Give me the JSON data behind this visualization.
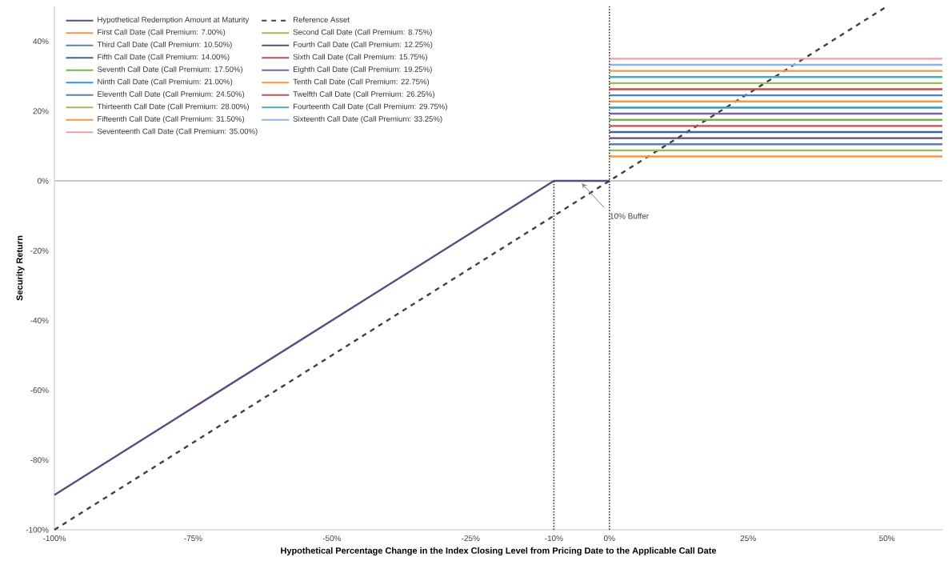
{
  "chart_data": {
    "type": "line",
    "xlabel": "Hypothetical Percentage Change in the Index Closing Level from Pricing Date to the Applicable Call Date",
    "ylabel": "Security Return",
    "xlim": [
      -100,
      60
    ],
    "ylim": [
      -100,
      50
    ],
    "xticks": [
      {
        "value": -100,
        "label": "-100%"
      },
      {
        "value": -75,
        "label": "-75%"
      },
      {
        "value": -50,
        "label": "-50%"
      },
      {
        "value": -25,
        "label": "-25%"
      },
      {
        "value": -10,
        "label": "-10%"
      },
      {
        "value": 0,
        "label": "0%"
      },
      {
        "value": 25,
        "label": "25%"
      },
      {
        "value": 50,
        "label": "50%"
      }
    ],
    "yticks": [
      {
        "value": -100,
        "label": "-100%"
      },
      {
        "value": -80,
        "label": "-80%"
      },
      {
        "value": -60,
        "label": "-60%"
      },
      {
        "value": -40,
        "label": "-40%"
      },
      {
        "value": -20,
        "label": "-20%"
      },
      {
        "value": 0,
        "label": "0%"
      },
      {
        "value": 20,
        "label": "20%"
      },
      {
        "value": 40,
        "label": "40%"
      }
    ],
    "legend": "top left",
    "marker": "none",
    "ref_lines": [
      {
        "axis": "y",
        "value": 0,
        "color": "#c8c8c8"
      }
    ],
    "annotations": [
      {
        "text": "10% Buffer",
        "x": -5,
        "y": 0
      }
    ],
    "series": [
      {
        "name": "Hypothetical Redemption Amount at Maturity",
        "color": "#604a7b",
        "x": [
          -100,
          -10,
          0
        ],
        "values": [
          -90,
          0,
          0
        ]
      },
      {
        "name": "Reference Asset",
        "color": "#404040",
        "line_style": "dashed",
        "x": [
          -100,
          50
        ],
        "values": [
          -100,
          50
        ]
      },
      {
        "name": "First Call Date (Call Premium: 7.00%)",
        "color": "#f79646",
        "x": [
          0,
          60
        ],
        "values": [
          7,
          7
        ]
      },
      {
        "name": "Second Call Date (Call Premium: 8.75%)",
        "color": "#9bbb59",
        "x": [
          0,
          60
        ],
        "values": [
          8.75,
          8.75
        ]
      },
      {
        "name": "Third Call Date (Call Premium: 10.50%)",
        "color": "#4f81bd",
        "x": [
          0,
          60
        ],
        "values": [
          10.5,
          10.5
        ]
      },
      {
        "name": "Fourth Call Date (Call Premium: 12.25%)",
        "color": "#604a7b",
        "x": [
          0,
          60
        ],
        "values": [
          12.25,
          12.25
        ]
      },
      {
        "name": "Fifth Call Date (Call Premium: 14.00%)",
        "color": "#3c64a0",
        "x": [
          0,
          60
        ],
        "values": [
          14,
          14
        ]
      },
      {
        "name": "Sixth Call Date (Call Premium: 15.75%)",
        "color": "#c0504d",
        "x": [
          0,
          60
        ],
        "values": [
          15.75,
          15.75
        ]
      },
      {
        "name": "Seventh Call Date (Call Premium: 17.50%)",
        "color": "#77b553",
        "x": [
          0,
          60
        ],
        "values": [
          17.5,
          17.5
        ]
      },
      {
        "name": "Eighth Call Date (Call Premium: 19.25%)",
        "color": "#8064a2",
        "x": [
          0,
          60
        ],
        "values": [
          19.25,
          19.25
        ]
      },
      {
        "name": "Ninth Call Date (Call Premium: 21.00%)",
        "color": "#2e9ad0",
        "x": [
          0,
          60
        ],
        "values": [
          21,
          21
        ]
      },
      {
        "name": "Tenth Call Date (Call Premium: 22.75%)",
        "color": "#f79646",
        "x": [
          0,
          60
        ],
        "values": [
          22.75,
          22.75
        ]
      },
      {
        "name": "Eleventh Call Date (Call Premium: 24.50%)",
        "color": "#4f81bd",
        "x": [
          0,
          60
        ],
        "values": [
          24.5,
          24.5
        ]
      },
      {
        "name": "Twelfth Call Date (Call Premium: 26.25%)",
        "color": "#c0504d",
        "x": [
          0,
          60
        ],
        "values": [
          26.25,
          26.25
        ]
      },
      {
        "name": "Thirteenth Call Date (Call Premium: 28.00%)",
        "color": "#9bbb59",
        "x": [
          0,
          60
        ],
        "values": [
          28,
          28
        ]
      },
      {
        "name": "Fourteenth Call Date (Call Premium: 29.75%)",
        "color": "#4bacc6",
        "x": [
          0,
          60
        ],
        "values": [
          29.75,
          29.75
        ]
      },
      {
        "name": "Fifteenth Call Date (Call Premium: 31.50%)",
        "color": "#f79646",
        "x": [
          0,
          60
        ],
        "values": [
          31.5,
          31.5
        ]
      },
      {
        "name": "Sixteenth Call Date (Call Premium: 33.25%)",
        "color": "#8eb4e3",
        "x": [
          0,
          60
        ],
        "values": [
          33.25,
          33.25
        ]
      },
      {
        "name": "Seventeenth Call Date (Call Premium: 35.00%)",
        "color": "#e6a3a3",
        "x": [
          0,
          60
        ],
        "values": [
          35,
          35
        ]
      },
      {
        "color": "#303030",
        "line_style": "dotted",
        "x": [
          -10,
          -10
        ],
        "values": [
          -100,
          0
        ]
      },
      {
        "color": "#303030",
        "line_style": "dotted",
        "x": [
          0,
          0
        ],
        "values": [
          -100,
          50
        ]
      }
    ]
  }
}
